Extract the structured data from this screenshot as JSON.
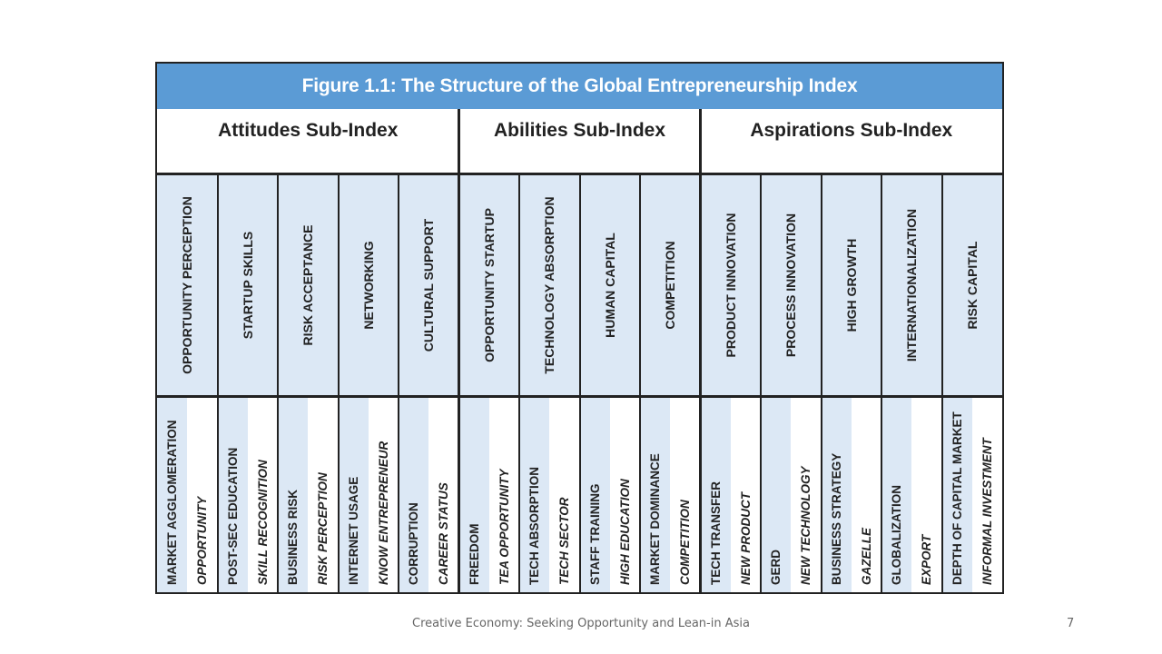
{
  "figure": {
    "title": "Figure 1.1: The Structure of the Global Entrepreneurship Index",
    "subindices": [
      "Attitudes Sub-Index",
      "Abilities Sub-Index",
      "Aspirations Sub-Index"
    ],
    "pillars": [
      {
        "label": "OPPORTUNITY PERCEPTION",
        "variables": [
          "MARKET AGGLOMERATION",
          "OPPORTUNITY"
        ]
      },
      {
        "label": "STARTUP SKILLS",
        "variables": [
          "POST-SEC EDUCATION",
          "SKILL RECOGNITION"
        ]
      },
      {
        "label": "RISK ACCEPTANCE",
        "variables": [
          "BUSINESS RISK",
          "RISK PERCEPTION"
        ]
      },
      {
        "label": "NETWORKING",
        "variables": [
          "INTERNET USAGE",
          "KNOW ENTREPRENEUR"
        ]
      },
      {
        "label": "CULTURAL SUPPORT",
        "variables": [
          "CORRUPTION",
          "CAREER STATUS"
        ]
      },
      {
        "label": "OPPORTUNITY STARTUP",
        "variables": [
          "FREEDOM",
          "TEA OPPORTUNITY"
        ]
      },
      {
        "label": "TECHNOLOGY ABSORPTION",
        "variables": [
          "TECH ABSORPTION",
          "TECH SECTOR"
        ]
      },
      {
        "label": "HUMAN CAPITAL",
        "variables": [
          "STAFF TRAINING",
          "HIGH EDUCATION"
        ]
      },
      {
        "label": "COMPETITION",
        "variables": [
          "MARKET DOMINANCE",
          "COMPETITION"
        ]
      },
      {
        "label": "PRODUCT INNOVATION",
        "variables": [
          "TECH TRANSFER",
          "NEW PRODUCT"
        ]
      },
      {
        "label": "PROCESS INNOVATION",
        "variables": [
          "GERD",
          "NEW TECHNOLOGY"
        ]
      },
      {
        "label": "HIGH GROWTH",
        "variables": [
          "BUSINESS STRATEGY",
          "GAZELLE"
        ]
      },
      {
        "label": "INTERNATIONALIZATION",
        "variables": [
          "GLOBALIZATION",
          "EXPORT"
        ]
      },
      {
        "label": "RISK CAPITAL",
        "variables": [
          "DEPTH OF CAPITAL MARKET",
          "INFORMAL INVESTMENT"
        ]
      }
    ]
  },
  "footer": {
    "text": "Creative Economy: Seeking Opportunity and Lean-in Asia",
    "page_number": "7"
  },
  "colors": {
    "title_bar": "#5b9bd5",
    "pillar_fill": "#dce8f5",
    "border": "#222222"
  }
}
